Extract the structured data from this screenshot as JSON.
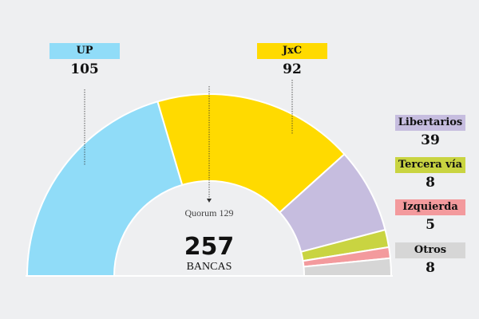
{
  "chart_data": {
    "type": "pie",
    "variant": "semicircle-donut",
    "total": 257,
    "total_label": "BANCAS",
    "quorum_label": "Quorum 129",
    "series": [
      {
        "name": "UP",
        "value": 105,
        "color": "#90dcf8"
      },
      {
        "name": "JxC",
        "value": 92,
        "color": "#ffda00"
      },
      {
        "name": "Libertarios",
        "value": 39,
        "color": "#c6bddf"
      },
      {
        "name": "Tercera vía",
        "value": 8,
        "color": "#c9d441"
      },
      {
        "name": "Izquierda",
        "value": 5,
        "color": "#f39a9d"
      },
      {
        "name": "Otros",
        "value": 8,
        "color": "#d6d6d6"
      }
    ]
  }
}
